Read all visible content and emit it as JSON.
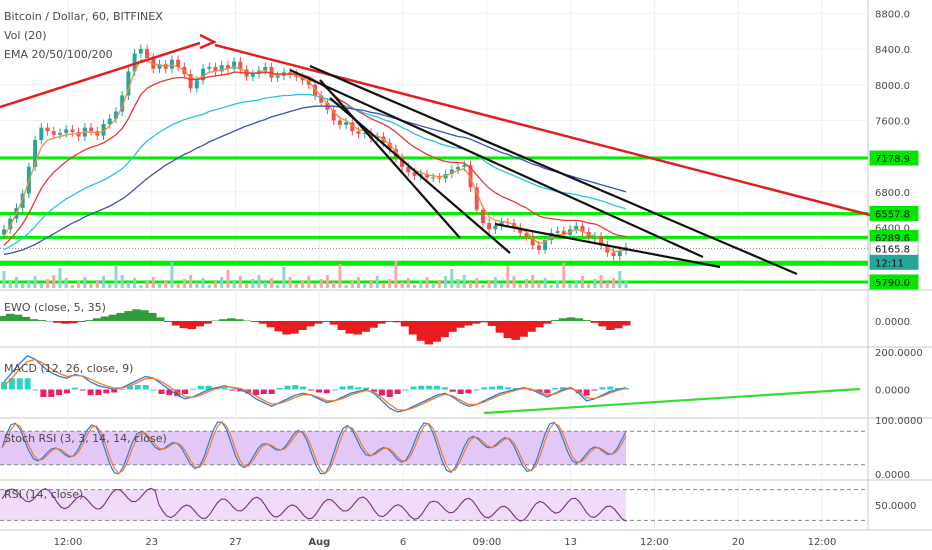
{
  "header": {
    "symbol": "Bitcoin / Dollar, 60, BITFINEX",
    "indicator_vol": "Vol (20)",
    "indicator_ema": "EMA 20/50/100/200"
  },
  "chart_data": {
    "type": "line",
    "title": "Bitcoin / Dollar, 60, BITFINEX",
    "price_axis": {
      "ticks": [
        "8800.0",
        "8400.0",
        "8000.0",
        "7600.0",
        "7200.0",
        "6800.0",
        "6400.0",
        "6000.0"
      ],
      "range": [
        5700,
        8950
      ]
    },
    "price_tags": [
      {
        "label": "7178.9",
        "price": 7178.9,
        "color": "#00e600",
        "text_color": "#111111"
      },
      {
        "label": "6557.8",
        "price": 6557.8,
        "color": "#00e600",
        "text_color": "#111111"
      },
      {
        "label": "6289.6",
        "price": 6289.6,
        "color": "#00e600",
        "text_color": "#111111"
      },
      {
        "label": "6165.8",
        "price": 6165.8,
        "color": "#ffffff",
        "text_color": "#333333"
      },
      {
        "label": "12:11",
        "price": 6010,
        "color": "#26a69a",
        "text_color": "#ffffff"
      },
      {
        "label": "5790.0",
        "price": 5790.0,
        "color": "#00e600",
        "text_color": "#111111"
      }
    ],
    "support_levels": [
      7178.9,
      6557.8,
      6289.6,
      6000.0,
      5790.0
    ],
    "x_axis_labels": [
      "12:00",
      "23",
      "27",
      "Aug",
      "6",
      "09:00",
      "13",
      "12:00",
      "20",
      "12:00"
    ],
    "candles_close": [
      6380,
      6500,
      6620,
      6780,
      7080,
      7380,
      7520,
      7480,
      7440,
      7460,
      7500,
      7470,
      7420,
      7520,
      7480,
      7430,
      7560,
      7620,
      7700,
      7880,
      8150,
      8350,
      8400,
      8300,
      8180,
      8230,
      8180,
      8280,
      8200,
      8120,
      7960,
      8050,
      8180,
      8200,
      8150,
      8220,
      8180,
      8260,
      8170,
      8090,
      8120,
      8160,
      8200,
      8080,
      8100,
      8140,
      8120,
      8090,
      8050,
      8000,
      7880,
      7800,
      7720,
      7600,
      7550,
      7580,
      7480,
      7450,
      7460,
      7400,
      7420,
      7350,
      7280,
      7180,
      7080,
      7020,
      6980,
      7000,
      6960,
      6960,
      6950,
      7000,
      7050,
      7080,
      7100,
      6850,
      6600,
      6450,
      6380,
      6420,
      6460,
      6450,
      6400,
      6340,
      6300,
      6200,
      6150,
      6260,
      6340,
      6360,
      6320,
      6380,
      6420,
      6350,
      6280,
      6300,
      6200,
      6120,
      6080,
      6140,
      6180
    ],
    "series": [
      {
        "name": "EMA 20",
        "color": "#f58c3a",
        "values": [
          6300,
          6420,
          6560,
          6720,
          6920,
          7120,
          7300,
          7380,
          7400,
          7420,
          7440,
          7450,
          7450,
          7470,
          7470,
          7460,
          7480,
          7540,
          7620,
          7750,
          7950,
          8150,
          8280,
          8270,
          8230,
          8220,
          8210,
          8220,
          8200,
          8160,
          8080,
          8060,
          8100,
          8140,
          8150,
          8170,
          8180,
          8200,
          8180,
          8140,
          8130,
          8140,
          8160,
          8120,
          8110,
          8120,
          8120,
          8110,
          8080,
          8040,
          7950,
          7870,
          7790,
          7700,
          7630,
          7600,
          7540,
          7500,
          7480,
          7440,
          7430,
          7390,
          7330,
          7250,
          7170,
          7100,
          7040,
          7020,
          6990,
          6980,
          6970,
          6980,
          7010,
          7040,
          7060,
          6960,
          6790,
          6630,
          6520,
          6480,
          6470,
          6460,
          6430,
          6390,
          6350,
          6280,
          6220,
          6240,
          6290,
          6320,
          6320,
          6350,
          6380,
          6360,
          6320,
          6310,
          6250,
          6180,
          6130,
          6135,
          6155
        ]
      },
      {
        "name": "EMA 50",
        "color": "#e53935",
        "values": [
          6200,
          6270,
          6350,
          6440,
          6560,
          6700,
          6840,
          6940,
          7020,
          7080,
          7140,
          7190,
          7230,
          7270,
          7300,
          7320,
          7350,
          7390,
          7440,
          7510,
          7620,
          7760,
          7890,
          7960,
          8000,
          8030,
          8050,
          8070,
          8080,
          8080,
          8060,
          8060,
          8070,
          8090,
          8100,
          8110,
          8120,
          8140,
          8140,
          8130,
          8130,
          8130,
          8140,
          8130,
          8120,
          8120,
          8120,
          8120,
          8110,
          8090,
          8050,
          8000,
          7950,
          7890,
          7830,
          7790,
          7740,
          7700,
          7660,
          7620,
          7590,
          7560,
          7520,
          7470,
          7410,
          7350,
          7300,
          7260,
          7220,
          7190,
          7160,
          7140,
          7130,
          7130,
          7120,
          7070,
          6990,
          6910,
          6840,
          6790,
          6750,
          6720,
          6690,
          6650,
          6620,
          6570,
          6530,
          6510,
          6500,
          6490,
          6480,
          6480,
          6480,
          6470,
          6450,
          6440,
          6410,
          6370,
          6330,
          6310,
          6300
        ]
      },
      {
        "name": "EMA 100",
        "color": "#26c6da",
        "values": [
          6150,
          6190,
          6230,
          6280,
          6340,
          6410,
          6490,
          6560,
          6620,
          6670,
          6720,
          6760,
          6800,
          6840,
          6870,
          6900,
          6930,
          6970,
          7010,
          7060,
          7130,
          7210,
          7300,
          7370,
          7420,
          7470,
          7510,
          7550,
          7580,
          7610,
          7630,
          7650,
          7670,
          7700,
          7720,
          7740,
          7760,
          7780,
          7800,
          7810,
          7820,
          7830,
          7850,
          7860,
          7870,
          7880,
          7880,
          7890,
          7890,
          7890,
          7880,
          7860,
          7840,
          7810,
          7780,
          7760,
          7730,
          7710,
          7680,
          7660,
          7640,
          7610,
          7590,
          7560,
          7520,
          7490,
          7450,
          7420,
          7390,
          7370,
          7340,
          7320,
          7300,
          7290,
          7280,
          7250,
          7210,
          7160,
          7110,
          7070,
          7040,
          7010,
          6980,
          6950,
          6920,
          6890,
          6860,
          6840,
          6820,
          6800,
          6790,
          6780,
          6770,
          6750,
          6740,
          6720,
          6700,
          6680,
          6650,
          6630,
          6610
        ]
      },
      {
        "name": "EMA 200",
        "color": "#3f51b5",
        "values": [
          6100,
          6110,
          6130,
          6150,
          6180,
          6210,
          6250,
          6290,
          6330,
          6370,
          6410,
          6450,
          6480,
          6520,
          6550,
          6580,
          6610,
          6640,
          6680,
          6720,
          6770,
          6830,
          6890,
          6950,
          7000,
          7050,
          7100,
          7140,
          7180,
          7220,
          7250,
          7290,
          7320,
          7360,
          7390,
          7420,
          7450,
          7480,
          7510,
          7540,
          7560,
          7590,
          7610,
          7640,
          7660,
          7680,
          7700,
          7720,
          7740,
          7750,
          7760,
          7760,
          7760,
          7760,
          7750,
          7740,
          7730,
          7720,
          7710,
          7690,
          7680,
          7660,
          7640,
          7620,
          7600,
          7580,
          7560,
          7540,
          7520,
          7500,
          7480,
          7460,
          7440,
          7420,
          7410,
          7390,
          7360,
          7330,
          7300,
          7270,
          7240,
          7220,
          7190,
          7170,
          7140,
          7110,
          7090,
          7060,
          7040,
          7020,
          7000,
          6980,
          6960,
          6940,
          6920,
          6900,
          6880,
          6860,
          6840,
          6820,
          6800
        ]
      }
    ],
    "panes": [
      {
        "name": "EWO",
        "label": "EWO (close, 5, 35)",
        "ticks": [
          "0.0000"
        ],
        "values": [
          110,
          160,
          140,
          90,
          40,
          20,
          -10,
          -40,
          -60,
          -50,
          -20,
          20,
          60,
          100,
          140,
          180,
          220,
          260,
          240,
          180,
          80,
          -20,
          -100,
          -160,
          -180,
          -120,
          -60,
          10,
          40,
          60,
          40,
          10,
          -20,
          -60,
          -140,
          -230,
          -300,
          -280,
          -200,
          -120,
          -60,
          -20,
          -80,
          -200,
          -280,
          -300,
          -240,
          -150,
          -60,
          -20,
          -30,
          -120,
          -300,
          -440,
          -520,
          -460,
          -360,
          -240,
          -150,
          -100,
          -60,
          -30,
          -110,
          -260,
          -380,
          -420,
          -350,
          -240,
          -140,
          -60,
          20,
          60,
          80,
          60,
          20,
          -40,
          -120,
          -200,
          -160,
          -100
        ]
      },
      {
        "name": "MACD",
        "label": "MACD (12, 26, close, 9)",
        "ticks": [
          "200.0000",
          "0.0000"
        ],
        "macd": [
          40,
          90,
          140,
          180,
          160,
          120,
          90,
          70,
          60,
          80,
          70,
          40,
          20,
          10,
          0,
          10,
          30,
          50,
          70,
          60,
          30,
          0,
          -30,
          -50,
          -40,
          -20,
          0,
          10,
          20,
          10,
          0,
          -20,
          -50,
          -70,
          -90,
          -70,
          -50,
          -30,
          -20,
          -30,
          -50,
          -70,
          -60,
          -40,
          -20,
          -10,
          0,
          -20,
          -60,
          -100,
          -120,
          -110,
          -90,
          -70,
          -50,
          -30,
          -20,
          -40,
          -70,
          -90,
          -80,
          -60,
          -40,
          -20,
          -10,
          0,
          10,
          0,
          -20,
          -40,
          -20,
          0,
          10,
          -20,
          -60,
          -50,
          -30,
          -10,
          0,
          10
        ],
        "signal": [
          20,
          60,
          110,
          150,
          160,
          140,
          110,
          85,
          70,
          75,
          72,
          55,
          35,
          20,
          8,
          8,
          20,
          38,
          58,
          60,
          42,
          15,
          -12,
          -38,
          -42,
          -30,
          -10,
          5,
          15,
          12,
          5,
          -10,
          -35,
          -58,
          -78,
          -74,
          -60,
          -42,
          -28,
          -28,
          -42,
          -60,
          -60,
          -48,
          -30,
          -16,
          -5,
          -14,
          -44,
          -80,
          -108,
          -110,
          -98,
          -80,
          -60,
          -40,
          -26,
          -34,
          -58,
          -80,
          -80,
          -66,
          -48,
          -30,
          -16,
          -4,
          6,
          2,
          -12,
          -30,
          -24,
          -6,
          6,
          -10,
          -44,
          -48,
          -36,
          -18,
          -4,
          6
        ],
        "ylim": [
          -120,
          200
        ]
      },
      {
        "name": "Stoch RSI",
        "label": "Stoch RSI (3, 3, 14, 14, close)",
        "ticks": [
          "100.0000",
          "0.0000"
        ],
        "ylim": [
          0,
          100
        ]
      },
      {
        "name": "RSI",
        "label": "RSI (14, close)",
        "ticks": [
          "50.0000"
        ],
        "ylim": [
          20,
          80
        ]
      }
    ],
    "trend_lines": [
      {
        "color": "#e02020",
        "description": "red rising line into arrow"
      },
      {
        "color": "#e02020",
        "description": "red descending resistance"
      },
      {
        "color": "#111111",
        "description": "black falling wedge lines"
      },
      {
        "color": "#33dd33",
        "description": "green MACD divergence line"
      }
    ]
  },
  "colors": {
    "up": "#26a69a",
    "down": "#ef5350",
    "ewo_up": "#2e9e3a",
    "ewo_down": "#e81c1c",
    "macd": "#2b7bdc",
    "signal": "#ef7d2b",
    "macd_hist_up": "#2bd3c6",
    "macd_hist_down": "#e8206a",
    "stoch_k": "#2b7bdc",
    "stoch_d": "#ef7d2b",
    "stoch_band": "#e3c8f7",
    "rsi": "#7a2a8a",
    "rsi_band": "#f1dcf7"
  }
}
